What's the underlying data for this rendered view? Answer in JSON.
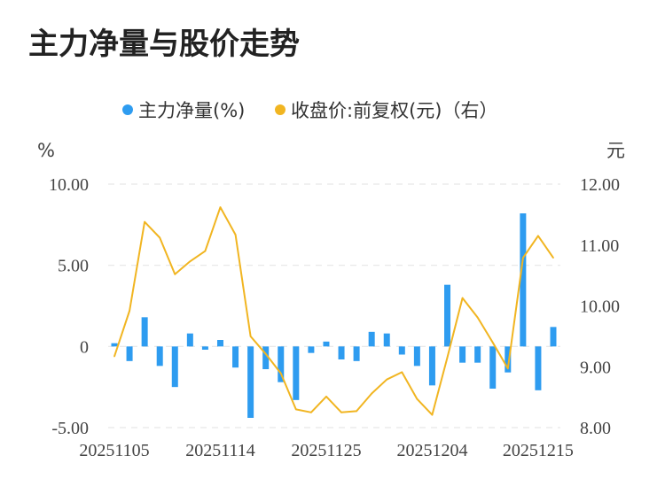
{
  "title": "主力净量与股价走势",
  "colors": {
    "bar": "#2e9cf0",
    "line": "#f1b521",
    "grid": "#e6e6e6"
  },
  "chart_data": {
    "type": "bar+line",
    "title": "主力净量与股价走势",
    "legend": {
      "placement": "top-center",
      "items": [
        {
          "label": "主力净量(%)",
          "marker": "circle",
          "color": "#2e9cf0"
        },
        {
          "label": "收盘价:前复权(元)（右）",
          "marker": "circle",
          "color": "#f1b521"
        }
      ]
    },
    "left_axis": {
      "unit": "%",
      "ticks": [
        "10.00",
        "5.00",
        "0",
        "-5.00"
      ],
      "ylim": [
        -5,
        10
      ]
    },
    "right_axis": {
      "unit": "元",
      "ticks": [
        "12.00",
        "11.00",
        "10.00",
        "9.00",
        "8.00"
      ],
      "ylim": [
        8,
        12
      ]
    },
    "grid": true,
    "x_tick_labels": [
      "20251105",
      "20251114",
      "20251125",
      "20251204",
      "20251215"
    ],
    "x_tick_indices": [
      0,
      7,
      14,
      21,
      28
    ],
    "series": [
      {
        "name": "主力净量(%)",
        "type": "bar",
        "axis": "left",
        "values": [
          0.2,
          -0.9,
          1.8,
          -1.2,
          -2.5,
          0.8,
          -0.2,
          0.4,
          -1.3,
          -4.4,
          -1.4,
          -2.2,
          -3.3,
          -0.4,
          0.3,
          -0.8,
          -0.9,
          0.9,
          0.8,
          -0.5,
          -1.2,
          -2.4,
          3.8,
          -1.0,
          -1.0,
          -2.6,
          -1.6,
          8.2,
          -2.7,
          1.2
        ]
      },
      {
        "name": "收盘价:前复权(元)（右）",
        "type": "line",
        "axis": "right",
        "values": [
          9.17,
          9.92,
          11.38,
          11.12,
          10.52,
          10.73,
          10.9,
          11.62,
          11.17,
          9.5,
          9.21,
          8.89,
          8.3,
          8.25,
          8.51,
          8.25,
          8.27,
          8.56,
          8.79,
          8.91,
          8.47,
          8.21,
          9.15,
          10.13,
          9.81,
          9.4,
          8.97,
          10.79,
          11.15,
          10.79
        ]
      }
    ]
  }
}
